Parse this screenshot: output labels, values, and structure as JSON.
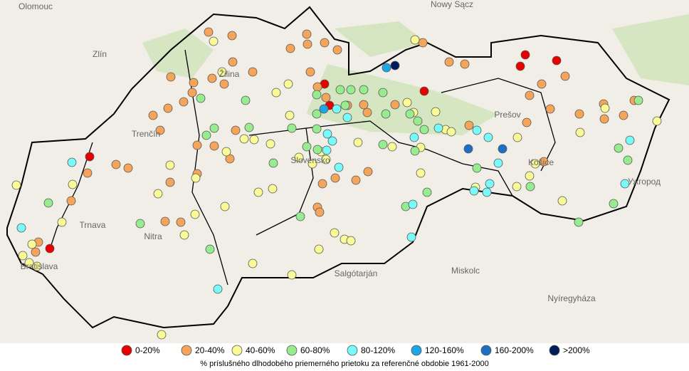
{
  "legend": {
    "items": [
      {
        "label": "0-20%",
        "color": "#e60000"
      },
      {
        "label": "20-40%",
        "color": "#f5a55a"
      },
      {
        "label": "40-60%",
        "color": "#fafa96"
      },
      {
        "label": "60-80%",
        "color": "#98ec90"
      },
      {
        "label": "80-120%",
        "color": "#78fafa"
      },
      {
        "label": "120-160%",
        "color": "#1ea5e6"
      },
      {
        "label": "160-200%",
        "color": "#1e6ec3"
      },
      {
        "label": ">200%",
        "color": "#001e5a"
      }
    ],
    "caption": "% príslušného dlhodobého priemerného prietoku za referenčné obdobie 1961-2000"
  },
  "places": [
    "Olomouc",
    "Nowy Sącz",
    "Zlín",
    "Žilina",
    "Trenčín",
    "Prešov",
    "Slovensko",
    "Košice",
    "Ужгород",
    "Trnava",
    "Nitra",
    "Bratislava",
    "Salgótarján",
    "Miskolc",
    "Nyíregyháza"
  ]
}
